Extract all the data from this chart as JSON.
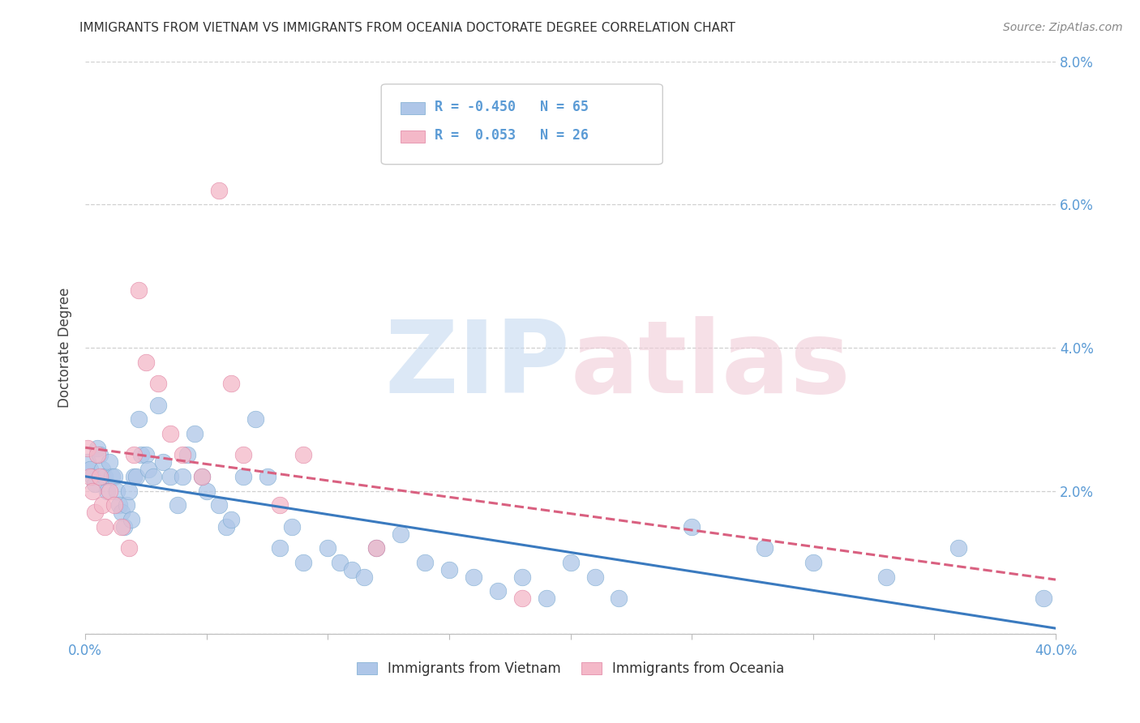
{
  "title": "IMMIGRANTS FROM VIETNAM VS IMMIGRANTS FROM OCEANIA DOCTORATE DEGREE CORRELATION CHART",
  "source": "Source: ZipAtlas.com",
  "ylabel": "Doctorate Degree",
  "xlim": [
    0.0,
    0.4
  ],
  "ylim": [
    0.0,
    0.08
  ],
  "yticks": [
    0.0,
    0.02,
    0.04,
    0.06,
    0.08
  ],
  "ytick_labels": [
    "",
    "2.0%",
    "4.0%",
    "6.0%",
    "8.0%"
  ],
  "xticks": [
    0.0,
    0.05,
    0.1,
    0.15,
    0.2,
    0.25,
    0.3,
    0.35,
    0.4
  ],
  "xtick_label_left": "0.0%",
  "xtick_label_right": "40.0%",
  "background_color": "#ffffff",
  "grid_color": "#d0d0d0",
  "series": [
    {
      "name": "Immigrants from Vietnam",
      "color": "#aec6e8",
      "edge_color": "#7aaad0",
      "R": -0.45,
      "N": 65,
      "line_color": "#3a7abf",
      "line_style": "solid",
      "x": [
        0.001,
        0.002,
        0.003,
        0.004,
        0.005,
        0.006,
        0.007,
        0.008,
        0.009,
        0.01,
        0.011,
        0.012,
        0.013,
        0.014,
        0.015,
        0.016,
        0.017,
        0.018,
        0.019,
        0.02,
        0.021,
        0.022,
        0.023,
        0.025,
        0.026,
        0.028,
        0.03,
        0.032,
        0.035,
        0.038,
        0.04,
        0.042,
        0.045,
        0.048,
        0.05,
        0.055,
        0.058,
        0.06,
        0.065,
        0.07,
        0.075,
        0.08,
        0.085,
        0.09,
        0.1,
        0.105,
        0.11,
        0.115,
        0.12,
        0.13,
        0.14,
        0.15,
        0.16,
        0.17,
        0.18,
        0.19,
        0.2,
        0.21,
        0.22,
        0.25,
        0.28,
        0.3,
        0.33,
        0.36,
        0.395
      ],
      "y": [
        0.024,
        0.023,
        0.022,
        0.021,
        0.026,
        0.025,
        0.023,
        0.022,
        0.02,
        0.024,
        0.022,
        0.022,
        0.02,
        0.018,
        0.017,
        0.015,
        0.018,
        0.02,
        0.016,
        0.022,
        0.022,
        0.03,
        0.025,
        0.025,
        0.023,
        0.022,
        0.032,
        0.024,
        0.022,
        0.018,
        0.022,
        0.025,
        0.028,
        0.022,
        0.02,
        0.018,
        0.015,
        0.016,
        0.022,
        0.03,
        0.022,
        0.012,
        0.015,
        0.01,
        0.012,
        0.01,
        0.009,
        0.008,
        0.012,
        0.014,
        0.01,
        0.009,
        0.008,
        0.006,
        0.008,
        0.005,
        0.01,
        0.008,
        0.005,
        0.015,
        0.012,
        0.01,
        0.008,
        0.012,
        0.005
      ]
    },
    {
      "name": "Immigrants from Oceania",
      "color": "#f4b8c8",
      "edge_color": "#e080a0",
      "R": 0.053,
      "N": 26,
      "line_color": "#d96080",
      "line_style": "dashed",
      "x": [
        0.001,
        0.002,
        0.003,
        0.004,
        0.005,
        0.006,
        0.007,
        0.008,
        0.01,
        0.012,
        0.015,
        0.018,
        0.02,
        0.022,
        0.025,
        0.03,
        0.035,
        0.04,
        0.048,
        0.055,
        0.06,
        0.065,
        0.08,
        0.09,
        0.12,
        0.18
      ],
      "y": [
        0.026,
        0.022,
        0.02,
        0.017,
        0.025,
        0.022,
        0.018,
        0.015,
        0.02,
        0.018,
        0.015,
        0.012,
        0.025,
        0.048,
        0.038,
        0.035,
        0.028,
        0.025,
        0.022,
        0.062,
        0.035,
        0.025,
        0.018,
        0.025,
        0.012,
        0.005
      ]
    }
  ],
  "legend_R_vietnam": "-0.450",
  "legend_N_vietnam": "65",
  "legend_R_oceania": "0.053",
  "legend_N_oceania": "26",
  "title_fontsize": 11,
  "tick_label_color": "#5b9bd5",
  "title_color": "#333333",
  "source_color": "#888888",
  "ylabel_color": "#444444"
}
